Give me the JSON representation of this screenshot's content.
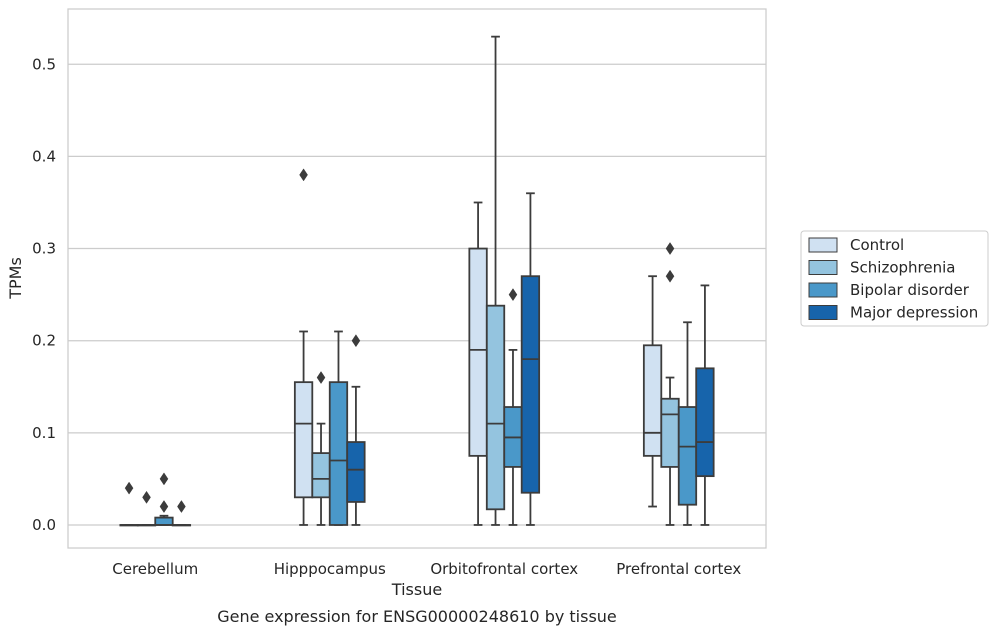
{
  "chart_data": {
    "type": "box",
    "caption": "Gene expression for ENSG00000248610 by tissue",
    "xlabel": "Tissue",
    "ylabel": "TPMs",
    "ylim": [
      -0.025,
      0.56
    ],
    "yticks": [
      0.0,
      0.1,
      0.2,
      0.3,
      0.4,
      0.5
    ],
    "ytick_labels": [
      "0.0",
      "0.1",
      "0.2",
      "0.3",
      "0.4",
      "0.5"
    ],
    "grid": "horizontal",
    "legend_position": "right",
    "categories": [
      "Cerebellum",
      "Hipppocampus",
      "Orbitofrontal cortex",
      "Prefrontal cortex"
    ],
    "series": [
      {
        "name": "Control",
        "color": "#d0e1f2",
        "boxes": [
          {
            "whislo": 0.0,
            "q1": 0.0,
            "med": 0.0,
            "q3": 0.0,
            "whishi": 0.0,
            "fliers": [
              0.04
            ]
          },
          {
            "whislo": 0.0,
            "q1": 0.03,
            "med": 0.11,
            "q3": 0.155,
            "whishi": 0.21,
            "fliers": [
              0.38
            ]
          },
          {
            "whislo": 0.0,
            "q1": 0.075,
            "med": 0.19,
            "q3": 0.3,
            "whishi": 0.35,
            "fliers": []
          },
          {
            "whislo": 0.02,
            "q1": 0.075,
            "med": 0.1,
            "q3": 0.195,
            "whishi": 0.27,
            "fliers": []
          }
        ]
      },
      {
        "name": "Schizophrenia",
        "color": "#94c4df",
        "boxes": [
          {
            "whislo": 0.0,
            "q1": 0.0,
            "med": 0.0,
            "q3": 0.0,
            "whishi": 0.0,
            "fliers": [
              0.03
            ]
          },
          {
            "whislo": 0.0,
            "q1": 0.03,
            "med": 0.05,
            "q3": 0.078,
            "whishi": 0.11,
            "fliers": [
              0.16
            ]
          },
          {
            "whislo": 0.0,
            "q1": 0.017,
            "med": 0.11,
            "q3": 0.238,
            "whishi": 0.53,
            "fliers": []
          },
          {
            "whislo": 0.0,
            "q1": 0.063,
            "med": 0.12,
            "q3": 0.137,
            "whishi": 0.16,
            "fliers": [
              0.27,
              0.3
            ]
          }
        ]
      },
      {
        "name": "Bipolar disorder",
        "color": "#4a98c9",
        "boxes": [
          {
            "whislo": 0.0,
            "q1": 0.0,
            "med": 0.0,
            "q3": 0.008,
            "whishi": 0.01,
            "fliers": [
              0.02,
              0.05
            ]
          },
          {
            "whislo": 0.0,
            "q1": 0.0,
            "med": 0.07,
            "q3": 0.155,
            "whishi": 0.21,
            "fliers": []
          },
          {
            "whislo": 0.0,
            "q1": 0.063,
            "med": 0.095,
            "q3": 0.128,
            "whishi": 0.19,
            "fliers": [
              0.25
            ]
          },
          {
            "whislo": 0.0,
            "q1": 0.022,
            "med": 0.085,
            "q3": 0.128,
            "whishi": 0.22,
            "fliers": []
          }
        ]
      },
      {
        "name": "Major depression",
        "color": "#1764ab",
        "boxes": [
          {
            "whislo": 0.0,
            "q1": 0.0,
            "med": 0.0,
            "q3": 0.0,
            "whishi": 0.0,
            "fliers": [
              0.02
            ]
          },
          {
            "whislo": 0.0,
            "q1": 0.025,
            "med": 0.06,
            "q3": 0.09,
            "whishi": 0.15,
            "fliers": [
              0.2
            ]
          },
          {
            "whislo": 0.0,
            "q1": 0.035,
            "med": 0.18,
            "q3": 0.27,
            "whishi": 0.36,
            "fliers": []
          },
          {
            "whislo": 0.0,
            "q1": 0.053,
            "med": 0.09,
            "q3": 0.17,
            "whishi": 0.26,
            "fliers": []
          }
        ]
      }
    ]
  }
}
